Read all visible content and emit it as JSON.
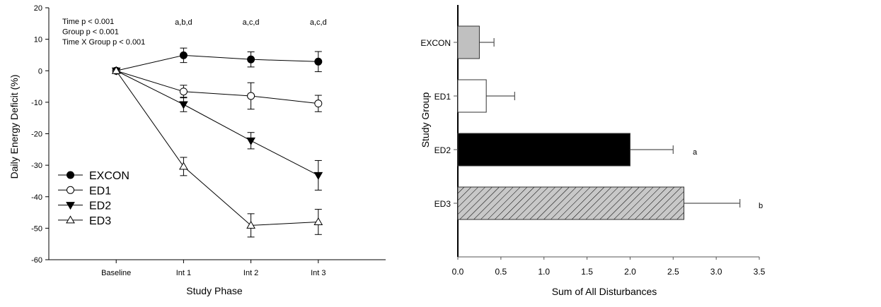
{
  "chart_data": [
    {
      "type": "line",
      "xlabel": "Study Phase",
      "ylabel": "Daily Energy Deficit (%)",
      "categories": [
        "Baseline",
        "Int 1",
        "Int 2",
        "Int 3"
      ],
      "ylim": [
        -60,
        20
      ],
      "yticks": [
        20,
        10,
        0,
        -10,
        -20,
        -30,
        -40,
        -50,
        -60
      ],
      "grid": false,
      "legend_position": "bottom-left",
      "annotations": [
        "Time p < 0.001",
        "Group p < 0.001",
        "Time X Group p < 0.001"
      ],
      "significance_labels": [
        "",
        "a,b,d",
        "a,c,d",
        "a,c,d"
      ],
      "series": [
        {
          "name": "EXCON",
          "marker": "filled-circle",
          "values": [
            0,
            4.9,
            3.6,
            2.9
          ],
          "error": [
            0,
            2.3,
            2.4,
            3.2
          ]
        },
        {
          "name": "ED1",
          "marker": "open-circle",
          "values": [
            0,
            -6.6,
            -8.0,
            -10.4
          ],
          "error": [
            0,
            2.0,
            4.2,
            2.6
          ]
        },
        {
          "name": "ED2",
          "marker": "filled-triangle-down",
          "values": [
            0,
            -10.7,
            -22.2,
            -33.2
          ],
          "error": [
            0,
            2.3,
            2.6,
            4.7
          ]
        },
        {
          "name": "ED3",
          "marker": "open-triangle-up",
          "values": [
            0,
            -30.4,
            -49.1,
            -48.0
          ],
          "error": [
            0,
            2.9,
            3.7,
            4.0
          ]
        }
      ]
    },
    {
      "type": "bar",
      "orientation": "horizontal",
      "xlabel": "Sum of All Disturbances",
      "ylabel": "Study Group",
      "categories": [
        "EXCON",
        "ED1",
        "ED2",
        "ED3"
      ],
      "values": [
        0.25,
        0.33,
        2.0,
        2.625
      ],
      "error": [
        0.17,
        0.33,
        0.5,
        0.65
      ],
      "significance_labels": [
        "",
        "",
        "a",
        "b"
      ],
      "fills": [
        "#c0c0c0",
        "#ffffff",
        "#000000",
        "hatched-gray"
      ],
      "xlim": [
        0,
        3.5
      ],
      "xticks": [
        "0.0",
        "0.5",
        "1.0",
        "1.5",
        "2.0",
        "2.5",
        "3.0",
        "3.5"
      ],
      "grid": false
    }
  ]
}
